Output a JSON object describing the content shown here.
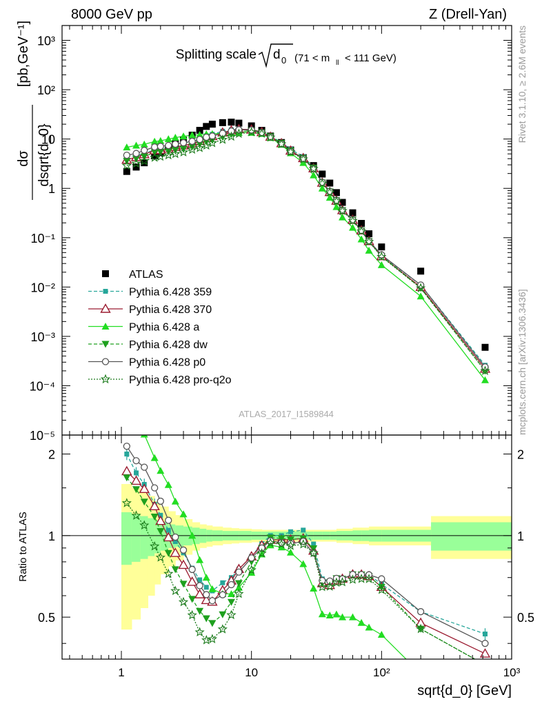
{
  "header": {
    "left": "8000 GeV pp",
    "right": "Z (Drell-Yan)"
  },
  "title": {
    "main": "Splitting scale",
    "symbol": "d",
    "subscript": "0",
    "range_open": "(71 < m",
    "range_sub": "ll",
    "range_close": "< 111 GeV)"
  },
  "side_labels": {
    "rivet": "Rivet 3.1.10, ≥ 2.6M events",
    "mcplots": "mcplots.cern.ch [arXiv:1306.3436]"
  },
  "analysis_id": "ATLAS_2017_I1589844",
  "chart_data": [
    {
      "type": "scatter",
      "scale": "log-log",
      "xlabel": "sqrt{d_0} [GeV]",
      "ylabel": "dσ/dsqrt{d_0} [pb,GeV⁻¹]",
      "xlim": [
        0.35,
        1000
      ],
      "ylim": [
        1e-05,
        2000
      ],
      "x_ticklabels": [
        "1",
        "10",
        "10²",
        "10³"
      ],
      "y_ticklabels": [
        "10⁻⁵",
        "10⁻⁴",
        "10⁻³",
        "10⁻²",
        "10⁻¹",
        "1",
        "10",
        "10²",
        "10³"
      ],
      "legend_position": "left",
      "x": [
        1.1,
        1.3,
        1.5,
        1.8,
        2.0,
        2.3,
        2.6,
        3.0,
        3.5,
        4.0,
        4.5,
        5.0,
        6.0,
        7.0,
        8.0,
        10.0,
        12.0,
        14.0,
        17.0,
        20.0,
        25.0,
        30.0,
        35.0,
        40.0,
        45.0,
        50.0,
        60.0,
        70.0,
        80.0,
        100.0,
        200.0,
        625.0
      ],
      "series": [
        {
          "name": "ATLAS",
          "color": "#000000",
          "marker": "square",
          "values": [
            2.2,
            2.7,
            3.3,
            4.6,
            5.3,
            6.5,
            8.0,
            9.5,
            12.0,
            15.0,
            18.0,
            20.0,
            21.5,
            22.0,
            21.0,
            18.5,
            15.0,
            11.5,
            8.5,
            6.0,
            4.2,
            2.9,
            1.95,
            1.28,
            0.82,
            0.52,
            0.32,
            0.195,
            0.12,
            0.065,
            0.021,
            0.0006
          ]
        },
        {
          "name": "Pythia 6.428 359",
          "color": "#26a69a",
          "marker": "square-small",
          "line": "dashed",
          "ratio_errors": true,
          "values": [
            4.4,
            4.6,
            5.1,
            6.0,
            6.3,
            6.8,
            7.6,
            8.2,
            9.1,
            10.3,
            11.6,
            12.5,
            14.4,
            15.4,
            15.8,
            15.5,
            14.0,
            11.5,
            8.5,
            6.2,
            4.4,
            2.7,
            1.35,
            0.87,
            0.57,
            0.36,
            0.23,
            0.14,
            0.086,
            0.043,
            0.011,
            0.00026
          ]
        },
        {
          "name": "Pythia 6.428 370",
          "color": "#9b1b30",
          "marker": "triangle-open",
          "line": "solid",
          "values": [
            3.8,
            4.3,
            4.9,
            5.9,
            6.0,
            6.4,
            6.9,
            7.4,
            8.1,
            9.1,
            10.4,
            11.4,
            13.5,
            15.0,
            15.8,
            15.5,
            13.8,
            11.1,
            8.2,
            5.8,
            4.1,
            2.55,
            1.3,
            0.84,
            0.56,
            0.36,
            0.23,
            0.14,
            0.085,
            0.042,
            0.01,
            0.00022
          ]
        },
        {
          "name": "Pythia 6.428 a",
          "color": "#22dd22",
          "marker": "triangle",
          "line": "solid",
          "values": [
            6.8,
            7.4,
            7.8,
            8.9,
            9.2,
            10.0,
            10.7,
            11.4,
            12.0,
            12.2,
            12.6,
            12.7,
            13.1,
            13.4,
            13.5,
            13.5,
            12.8,
            10.6,
            7.7,
            5.2,
            3.3,
            1.85,
            1.0,
            0.65,
            0.42,
            0.26,
            0.16,
            0.093,
            0.055,
            0.028,
            0.0065,
            0.00013
          ]
        },
        {
          "name": "Pythia 6.428 dw",
          "color": "#1ea01e",
          "marker": "triangle-down",
          "line": "dashed",
          "values": [
            3.6,
            4.0,
            4.4,
            5.4,
            5.5,
            5.6,
            6.0,
            6.3,
            7.0,
            7.9,
            8.9,
            9.5,
            11.0,
            12.5,
            14.0,
            14.8,
            13.5,
            11.3,
            8.3,
            5.8,
            4.1,
            2.6,
            1.3,
            0.86,
            0.57,
            0.36,
            0.23,
            0.14,
            0.085,
            0.042,
            0.0095,
            0.0002
          ]
        },
        {
          "name": "Pythia 6.428 p0",
          "color": "#555555",
          "marker": "circle-open",
          "line": "solid",
          "values": [
            4.7,
            5.1,
            5.9,
            6.9,
            7.1,
            7.4,
            7.9,
            8.4,
            9.0,
            9.8,
            10.9,
            11.5,
            13.0,
            14.5,
            15.4,
            15.3,
            13.5,
            11.0,
            8.0,
            5.6,
            4.0,
            2.5,
            1.33,
            0.87,
            0.57,
            0.36,
            0.23,
            0.14,
            0.086,
            0.045,
            0.011,
            0.00024
          ]
        },
        {
          "name": "Pythia 6.428 pro-q2o",
          "color": "#1a7a1a",
          "marker": "star-open",
          "line": "dotted",
          "values": [
            2.9,
            3.2,
            3.6,
            4.2,
            4.4,
            4.7,
            5.0,
            5.4,
            6.1,
            6.6,
            7.4,
            8.3,
            9.7,
            11.2,
            12.8,
            13.8,
            12.9,
            10.8,
            7.9,
            5.5,
            3.9,
            2.5,
            1.26,
            0.83,
            0.55,
            0.35,
            0.22,
            0.135,
            0.083,
            0.041,
            0.0095,
            0.0002
          ]
        }
      ]
    },
    {
      "type": "line",
      "scale": "log-x",
      "ylabel": "Ratio to ATLAS",
      "xlabel": "sqrt{d_0} [GeV]",
      "ylim": [
        0.35,
        2.35
      ],
      "y_ticklabels": [
        "0.5",
        "1",
        "2"
      ],
      "reference_line": 1,
      "bands": {
        "edges": [
          1.0,
          1.2,
          1.4,
          1.6,
          1.8,
          2.0,
          2.3,
          2.6,
          3.0,
          3.5,
          4.0,
          4.5,
          5.0,
          6.0,
          7.0,
          8.0,
          10.0,
          12.0,
          14.0,
          17.0,
          20.0,
          25.0,
          30.0,
          35.0,
          40.0,
          45.0,
          50.0,
          60.0,
          70.0,
          80.0,
          100.0,
          240.0,
          1000.0
        ],
        "yellow_lo": [
          0.45,
          0.49,
          0.54,
          0.6,
          0.66,
          0.72,
          0.77,
          0.81,
          0.85,
          0.88,
          0.9,
          0.91,
          0.92,
          0.93,
          0.935,
          0.94,
          0.945,
          0.945,
          0.945,
          0.945,
          0.95,
          0.95,
          0.95,
          0.95,
          0.95,
          0.94,
          0.94,
          0.93,
          0.93,
          0.92,
          0.92,
          0.82
        ],
        "yellow_hi": [
          1.55,
          1.5,
          1.46,
          1.4,
          1.34,
          1.28,
          1.23,
          1.19,
          1.15,
          1.12,
          1.1,
          1.09,
          1.08,
          1.07,
          1.065,
          1.06,
          1.055,
          1.05,
          1.05,
          1.05,
          1.05,
          1.05,
          1.05,
          1.05,
          1.05,
          1.06,
          1.06,
          1.07,
          1.07,
          1.08,
          1.08,
          1.18
        ],
        "green_lo": [
          0.78,
          0.8,
          0.82,
          0.84,
          0.86,
          0.88,
          0.9,
          0.91,
          0.92,
          0.93,
          0.94,
          0.95,
          0.955,
          0.96,
          0.96,
          0.96,
          0.965,
          0.965,
          0.965,
          0.965,
          0.965,
          0.965,
          0.965,
          0.965,
          0.965,
          0.96,
          0.96,
          0.955,
          0.955,
          0.95,
          0.95,
          0.88
        ],
        "green_hi": [
          1.22,
          1.2,
          1.18,
          1.16,
          1.14,
          1.12,
          1.1,
          1.09,
          1.08,
          1.07,
          1.06,
          1.05,
          1.045,
          1.04,
          1.04,
          1.04,
          1.035,
          1.035,
          1.035,
          1.035,
          1.035,
          1.035,
          1.035,
          1.035,
          1.035,
          1.04,
          1.04,
          1.045,
          1.045,
          1.05,
          1.05,
          1.12
        ]
      }
    }
  ]
}
